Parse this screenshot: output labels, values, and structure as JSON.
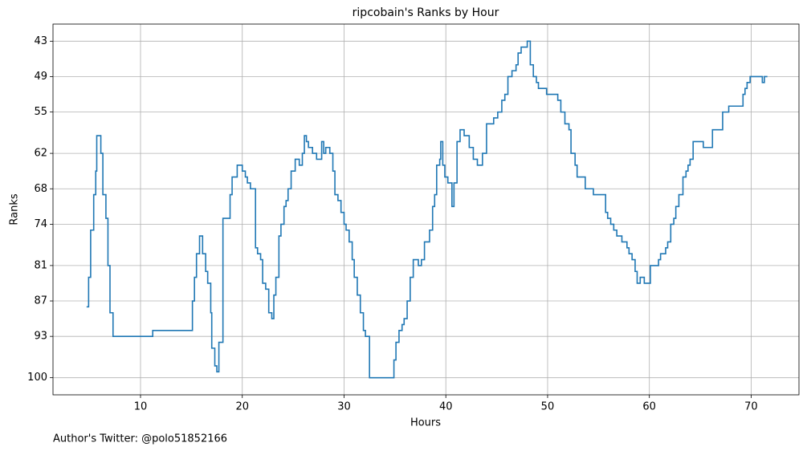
{
  "chart_data": {
    "type": "step",
    "title": "ripcobain's Ranks by Hour",
    "x_label": "Hours",
    "y_label": "Ranks",
    "footer": "Author's Twitter: @polo51852166",
    "series": [
      {
        "name": "Rank",
        "color": "#1f77b4",
        "x": [
          4.7,
          4.9,
          5.1,
          5.4,
          5.6,
          5.7,
          6.1,
          6.3,
          6.6,
          6.8,
          7.0,
          7.3,
          11.2,
          15.1,
          15.3,
          15.5,
          15.8,
          16.1,
          16.4,
          16.6,
          16.9,
          17.0,
          17.3,
          17.5,
          17.7,
          18.1,
          18.8,
          19.0,
          19.5,
          20.0,
          20.3,
          20.5,
          20.8,
          21.3,
          21.5,
          21.8,
          22.0,
          22.3,
          22.6,
          22.9,
          23.1,
          23.3,
          23.6,
          23.8,
          24.1,
          24.3,
          24.5,
          24.8,
          25.2,
          25.6,
          25.9,
          26.1,
          26.3,
          26.5,
          26.9,
          27.3,
          27.8,
          28.0,
          28.2,
          28.6,
          28.9,
          29.1,
          29.4,
          29.7,
          30.0,
          30.2,
          30.5,
          30.8,
          31.0,
          31.3,
          31.6,
          31.9,
          32.1,
          32.5,
          34.9,
          35.1,
          35.4,
          35.7,
          35.9,
          36.2,
          36.5,
          36.8,
          37.3,
          37.6,
          37.9,
          38.4,
          38.7,
          38.9,
          39.1,
          39.4,
          39.5,
          39.7,
          39.9,
          40.2,
          40.6,
          40.8,
          41.1,
          41.4,
          41.8,
          42.3,
          42.7,
          43.1,
          43.6,
          44.0,
          44.7,
          45.1,
          45.5,
          45.8,
          46.1,
          46.5,
          46.9,
          47.1,
          47.4,
          48.0,
          48.3,
          48.6,
          48.9,
          49.1,
          49.9,
          51.0,
          51.3,
          51.7,
          52.1,
          52.3,
          52.7,
          52.9,
          53.7,
          54.5,
          55.7,
          55.9,
          56.2,
          56.5,
          56.8,
          57.3,
          57.8,
          58.0,
          58.3,
          58.6,
          58.8,
          59.1,
          59.5,
          60.1,
          60.9,
          61.1,
          61.6,
          61.8,
          62.1,
          62.4,
          62.6,
          62.9,
          63.3,
          63.6,
          63.8,
          64.0,
          64.3,
          65.3,
          66.2,
          67.2,
          67.8,
          69.2,
          69.4,
          69.6,
          69.9,
          71.1,
          71.3,
          71.6
        ],
        "values": [
          88,
          83,
          75,
          69,
          65,
          59,
          62,
          69,
          73,
          81,
          89,
          93,
          92,
          87,
          83,
          79,
          76,
          79,
          82,
          84,
          89,
          95,
          98,
          99,
          94,
          73,
          69,
          66,
          64,
          65,
          66,
          67,
          68,
          78,
          79,
          80,
          84,
          85,
          89,
          90,
          86,
          83,
          76,
          74,
          71,
          70,
          68,
          65,
          63,
          64,
          62,
          59,
          60,
          61,
          62,
          63,
          60,
          62,
          61,
          62,
          65,
          69,
          70,
          72,
          74,
          75,
          77,
          80,
          83,
          86,
          89,
          92,
          93,
          100,
          97,
          94,
          92,
          91,
          90,
          87,
          83,
          80,
          81,
          80,
          77,
          75,
          71,
          69,
          64,
          63,
          60,
          64,
          66,
          67,
          71,
          67,
          60,
          58,
          59,
          61,
          63,
          64,
          62,
          57,
          56,
          55,
          53,
          52,
          49,
          48,
          47,
          45,
          44,
          43,
          47,
          49,
          50,
          51,
          52,
          53,
          55,
          57,
          58,
          62,
          64,
          66,
          68,
          69,
          72,
          73,
          74,
          75,
          76,
          77,
          78,
          79,
          80,
          82,
          84,
          83,
          84,
          81,
          80,
          79,
          78,
          77,
          74,
          73,
          71,
          69,
          66,
          65,
          64,
          63,
          60,
          61,
          58,
          55,
          54,
          52,
          51,
          50,
          49,
          50,
          49,
          49
        ]
      }
    ],
    "xlim": [
      1.4,
      74.7
    ],
    "xticks": [
      10,
      20,
      30,
      40,
      50,
      60,
      70
    ],
    "ylim": [
      102.9,
      40.1
    ],
    "yticks": [
      43,
      49,
      55,
      62,
      68,
      74,
      81,
      87,
      93,
      100
    ],
    "grid": true
  }
}
